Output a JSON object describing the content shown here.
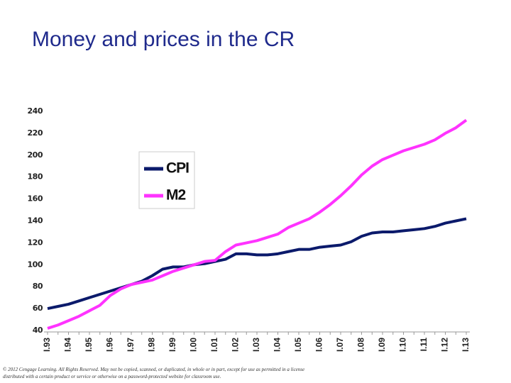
{
  "chart_data": {
    "type": "line",
    "title": "Money and prices in the CR",
    "categories": [
      "I.93",
      null,
      "I.94",
      null,
      "I.95",
      null,
      "I.96",
      null,
      "I.97",
      null,
      "I.98",
      null,
      "I.99",
      null,
      "I.00",
      null,
      "I.01",
      null,
      "I.02",
      null,
      "I.03",
      null,
      "I.04",
      null,
      "I.05",
      null,
      "I.06",
      null,
      "I.07",
      null,
      "I.08",
      null,
      "I.09",
      null,
      "I.10",
      null,
      "I.11",
      null,
      "I.12",
      null,
      "I.13"
    ],
    "series": [
      {
        "name": "CPI",
        "color": "#0b1a6b",
        "values": [
          60,
          62,
          64,
          67,
          70,
          73,
          76,
          79,
          82,
          85,
          90,
          96,
          98,
          98,
          100,
          101,
          103,
          105,
          110,
          110,
          109,
          109,
          110,
          112,
          114,
          114,
          116,
          117,
          118,
          121,
          126,
          129,
          130,
          130,
          131,
          132,
          133,
          135,
          138,
          140,
          142
        ]
      },
      {
        "name": "M2",
        "color": "#ff33ff",
        "values": [
          42,
          45,
          49,
          53,
          58,
          63,
          72,
          78,
          82,
          84,
          86,
          90,
          94,
          97,
          100,
          103,
          104,
          112,
          118,
          120,
          122,
          125,
          128,
          134,
          138,
          142,
          148,
          155,
          163,
          172,
          182,
          190,
          196,
          200,
          204,
          207,
          210,
          214,
          220,
          225,
          232
        ]
      }
    ],
    "ylim": [
      40,
      240
    ],
    "yticks": [
      40,
      60,
      80,
      100,
      120,
      140,
      160,
      180,
      200,
      220,
      240
    ],
    "grid": false,
    "legend": "upper left"
  },
  "footer": "© 2012 Cengage Learning. All Rights Reserved. May not be copied, scanned, or duplicated, in whole or in part, except for use as permitted in a license distributed with a certain product or service or otherwise on a password-protected website for classroom use."
}
